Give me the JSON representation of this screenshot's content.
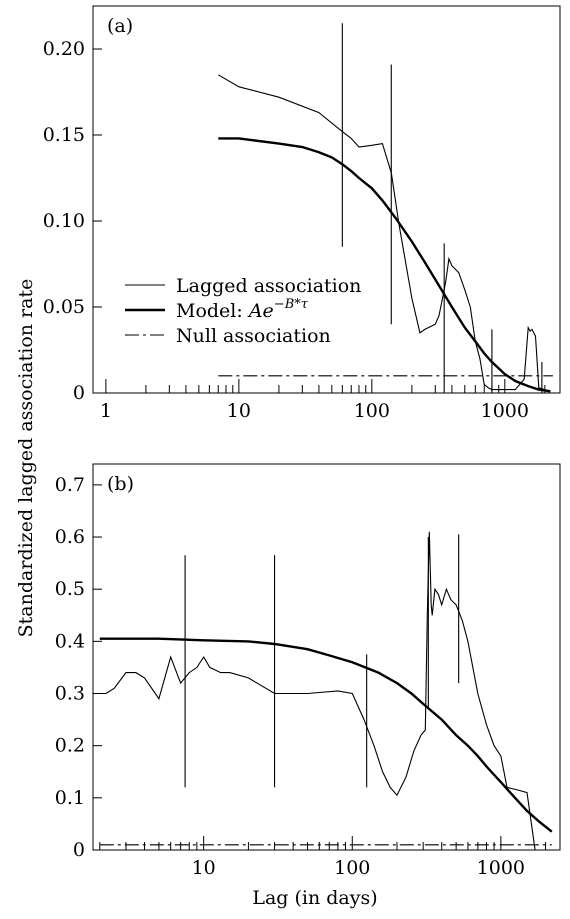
{
  "figure": {
    "ylabel": "Standardized lagged association rate",
    "xlabel": "Lag (in days)"
  },
  "chart_data": [
    {
      "type": "line",
      "panel_label": "(a)",
      "x_scale": "log",
      "xlim": [
        0.8,
        2600
      ],
      "ylim": [
        0,
        0.225
      ],
      "y_ticks": [
        "0",
        "0.05",
        "0.10",
        "0.15",
        "0.20"
      ],
      "y_tick_values": [
        0,
        0.05,
        0.1,
        0.15,
        0.2
      ],
      "x_ticks": [
        "1",
        "10",
        "100",
        "1000"
      ],
      "x_tick_values": [
        1,
        10,
        100,
        1000
      ],
      "legend": {
        "placement": "center-left",
        "entries": [
          {
            "label": "Lagged association",
            "style": "thin"
          },
          {
            "label_text": "Model: ",
            "label_math": "Ae",
            "label_sup": "−B*τ",
            "style": "thick"
          },
          {
            "label": "Null association",
            "style": "dashdot"
          }
        ]
      },
      "series": [
        {
          "style": "thin",
          "x": [
            7,
            10,
            20,
            40,
            60,
            70,
            80,
            100,
            120,
            140,
            160,
            200,
            230,
            250,
            300,
            320,
            340,
            360,
            380,
            400,
            450,
            500,
            550,
            600,
            650,
            700,
            750,
            800,
            1200,
            1400,
            1500,
            1550,
            1600,
            1700,
            1800,
            2000
          ],
          "y": [
            0.185,
            0.178,
            0.172,
            0.163,
            0.152,
            0.148,
            0.143,
            0.144,
            0.145,
            0.128,
            0.098,
            0.055,
            0.035,
            0.037,
            0.04,
            0.045,
            0.055,
            0.065,
            0.078,
            0.074,
            0.07,
            0.06,
            0.05,
            0.03,
            0.02,
            0.005,
            0.003,
            0.002,
            0.002,
            0.008,
            0.038,
            0.036,
            0.037,
            0.033,
            0.003,
            0.002
          ]
        },
        {
          "style": "thick",
          "x": [
            7,
            10,
            20,
            30,
            40,
            50,
            60,
            70,
            80,
            100,
            120,
            150,
            200,
            250,
            300,
            400,
            500,
            600,
            700,
            800,
            1000,
            1200,
            1500,
            1800,
            2000,
            2200
          ],
          "y": [
            0.148,
            0.148,
            0.145,
            0.143,
            0.14,
            0.137,
            0.133,
            0.129,
            0.125,
            0.119,
            0.112,
            0.102,
            0.088,
            0.076,
            0.066,
            0.05,
            0.038,
            0.03,
            0.023,
            0.018,
            0.011,
            0.007,
            0.004,
            0.002,
            0.0015,
            0.001
          ]
        },
        {
          "style": "dashdot",
          "x": [
            7,
            2300
          ],
          "y": [
            0.01,
            0.01
          ]
        }
      ],
      "error_bars": [
        {
          "x": 60,
          "low": 0.085,
          "high": 0.215
        },
        {
          "x": 140,
          "low": 0.04,
          "high": 0.191
        },
        {
          "x": 350,
          "low": 0.0,
          "high": 0.087
        },
        {
          "x": 800,
          "low": 0.0,
          "high": 0.037
        },
        {
          "x": 1900,
          "low": 0.0,
          "high": 0.018
        }
      ],
      "x_minor_ticks": [
        2,
        3,
        4,
        5,
        6,
        7,
        8,
        9,
        20,
        30,
        40,
        50,
        60,
        70,
        80,
        90,
        200,
        300,
        400,
        500,
        600,
        700,
        800,
        900,
        2000
      ]
    },
    {
      "type": "line",
      "panel_label": "(b)",
      "x_scale": "log",
      "xlim": [
        1.8,
        2500
      ],
      "ylim": [
        0,
        0.74
      ],
      "y_ticks": [
        "0",
        "0.1",
        "0.2",
        "0.3",
        "0.4",
        "0.5",
        "0.6",
        "0.7"
      ],
      "y_tick_values": [
        0,
        0.1,
        0.2,
        0.3,
        0.4,
        0.5,
        0.6,
        0.7
      ],
      "x_ticks": [
        "10",
        "100",
        "1000"
      ],
      "x_tick_values": [
        10,
        100,
        1000
      ],
      "series": [
        {
          "style": "thin",
          "x": [
            2,
            2.2,
            2.5,
            3,
            3.5,
            4,
            5,
            6,
            7,
            8,
            9,
            10,
            11,
            13,
            15,
            20,
            30,
            50,
            80,
            100,
            120,
            140,
            160,
            180,
            200,
            230,
            260,
            290,
            310,
            320,
            330,
            340,
            345,
            360,
            380,
            400,
            430,
            460,
            500,
            550,
            600,
            700,
            800,
            900,
            1000,
            1100,
            1300,
            1500,
            1700
          ],
          "y": [
            0.3,
            0.3,
            0.31,
            0.34,
            0.34,
            0.33,
            0.29,
            0.37,
            0.32,
            0.34,
            0.35,
            0.37,
            0.35,
            0.34,
            0.34,
            0.33,
            0.3,
            0.3,
            0.305,
            0.3,
            0.25,
            0.2,
            0.15,
            0.12,
            0.105,
            0.14,
            0.19,
            0.22,
            0.23,
            0.45,
            0.61,
            0.47,
            0.45,
            0.5,
            0.49,
            0.47,
            0.5,
            0.48,
            0.47,
            0.44,
            0.4,
            0.3,
            0.24,
            0.2,
            0.18,
            0.12,
            0.115,
            0.11,
            0.0
          ]
        },
        {
          "style": "thick",
          "x": [
            2,
            3,
            5,
            10,
            20,
            30,
            50,
            70,
            100,
            150,
            200,
            250,
            300,
            400,
            500,
            600,
            700,
            800,
            1000,
            1200,
            1500,
            1800,
            2200
          ],
          "y": [
            0.405,
            0.405,
            0.405,
            0.402,
            0.4,
            0.395,
            0.385,
            0.373,
            0.36,
            0.34,
            0.32,
            0.3,
            0.28,
            0.25,
            0.22,
            0.2,
            0.18,
            0.16,
            0.13,
            0.105,
            0.075,
            0.055,
            0.035
          ]
        },
        {
          "style": "dashdot",
          "x": [
            2,
            2200
          ],
          "y": [
            0.01,
            0.01
          ]
        }
      ],
      "error_bars": [
        {
          "x": 7.5,
          "low": 0.12,
          "high": 0.565
        },
        {
          "x": 30,
          "low": 0.12,
          "high": 0.565
        },
        {
          "x": 125,
          "low": 0.12,
          "high": 0.375
        },
        {
          "x": 325,
          "low": 0.27,
          "high": 0.6
        },
        {
          "x": 520,
          "low": 0.32,
          "high": 0.605
        }
      ],
      "x_minor_ticks": [
        2,
        3,
        4,
        5,
        6,
        7,
        8,
        9,
        20,
        30,
        40,
        50,
        60,
        70,
        80,
        90,
        200,
        300,
        400,
        500,
        600,
        700,
        800,
        900,
        2000
      ]
    }
  ]
}
